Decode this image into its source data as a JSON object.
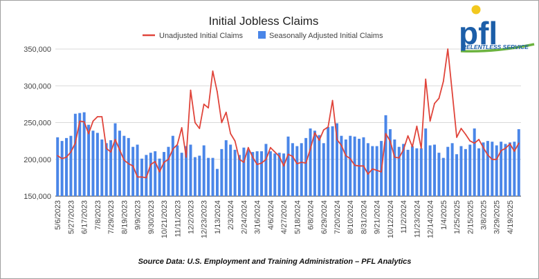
{
  "logo": {
    "letters": "pfl",
    "tagline": "RELENTLESS SERVICE",
    "colors": {
      "primary": "#1c5ea8",
      "sun": "#f2c81e",
      "swoosh": "#6cb33f"
    }
  },
  "source": "Source Data: U.S. Employment and Training Administration – PFL Analytics",
  "chart_data": {
    "type": "bar",
    "title": "Initial Jobless Claims",
    "legend_position": "top-center",
    "grid": true,
    "ylim": [
      150000,
      350000
    ],
    "yticks": [
      {
        "value": 150000,
        "label": "150,000"
      },
      {
        "value": 200000,
        "label": "200,000"
      },
      {
        "value": 250000,
        "label": "250,000"
      },
      {
        "value": 300000,
        "label": "300,000"
      },
      {
        "value": 350000,
        "label": "350,000"
      }
    ],
    "x_tick_labels": [
      {
        "index": 0,
        "label": "5/6/2023"
      },
      {
        "index": 3,
        "label": "5/27/2023"
      },
      {
        "index": 6,
        "label": "6/17/2023"
      },
      {
        "index": 9,
        "label": "7/8/2023"
      },
      {
        "index": 12,
        "label": "7/29/2023"
      },
      {
        "index": 15,
        "label": "8/19/2023"
      },
      {
        "index": 18,
        "label": "9/9/2023"
      },
      {
        "index": 21,
        "label": "9/30/2023"
      },
      {
        "index": 24,
        "label": "10/21/2023"
      },
      {
        "index": 27,
        "label": "11/11/2023"
      },
      {
        "index": 30,
        "label": "12/2/2023"
      },
      {
        "index": 33,
        "label": "12/23/2023"
      },
      {
        "index": 36,
        "label": "1/13/2024"
      },
      {
        "index": 39,
        "label": "2/3/2024"
      },
      {
        "index": 42,
        "label": "2/24/2024"
      },
      {
        "index": 45,
        "label": "3/16/2024"
      },
      {
        "index": 48,
        "label": "4/6/2024"
      },
      {
        "index": 51,
        "label": "4/27/2024"
      },
      {
        "index": 54,
        "label": "5/18/2024"
      },
      {
        "index": 57,
        "label": "6/8/2024"
      },
      {
        "index": 60,
        "label": "6/29/2024"
      },
      {
        "index": 63,
        "label": "7/20/2024"
      },
      {
        "index": 66,
        "label": "8/10/2024"
      },
      {
        "index": 69,
        "label": "8/31/2024"
      },
      {
        "index": 72,
        "label": "9/21/2024"
      },
      {
        "index": 75,
        "label": "10/12/2024"
      },
      {
        "index": 78,
        "label": "11/2/2024"
      },
      {
        "index": 81,
        "label": "11/23/2024"
      },
      {
        "index": 84,
        "label": "12/14/2024"
      },
      {
        "index": 87,
        "label": "1/4/2025"
      },
      {
        "index": 90,
        "label": "1/25/2025"
      },
      {
        "index": 93,
        "label": "2/15/2025"
      },
      {
        "index": 96,
        "label": "3/8/2025"
      },
      {
        "index": 99,
        "label": "3/29/2025"
      },
      {
        "index": 102,
        "label": "4/19/2025"
      }
    ],
    "series": [
      {
        "name": "Unadjusted Initial Claims",
        "type": "line",
        "color": "#e0443a",
        "values": [
          205000,
          201000,
          203000,
          210000,
          222000,
          252000,
          251000,
          235000,
          252000,
          258000,
          258000,
          215000,
          210000,
          227000,
          213000,
          199000,
          194000,
          191000,
          176000,
          176000,
          175000,
          193000,
          197000,
          183000,
          196000,
          200000,
          214000,
          220000,
          243000,
          203000,
          294000,
          250000,
          242000,
          275000,
          270000,
          320000,
          292000,
          250000,
          264000,
          235000,
          225000,
          200000,
          196000,
          216000,
          203000,
          193000,
          195000,
          200000,
          216000,
          210000,
          204000,
          191000,
          207000,
          204000,
          194000,
          196000,
          195000,
          214000,
          236000,
          226000,
          240000,
          244000,
          280000,
          227000,
          219000,
          205000,
          201000,
          192000,
          191000,
          191000,
          180000,
          187000,
          185000,
          183000,
          235000,
          225000,
          203000,
          202000,
          213000,
          232000,
          217000,
          245000,
          215000,
          309000,
          252000,
          276000,
          283000,
          306000,
          350000,
          290000,
          230000,
          242000,
          234000,
          225000,
          222000,
          227000,
          216000,
          206000,
          200000,
          200000,
          212000,
          215000,
          221000,
          211000,
          222000
        ]
      },
      {
        "name": "Seasonally Adjusted Initial Claims",
        "type": "bar",
        "color": "#4a86e8",
        "values": [
          230000,
          225000,
          229000,
          232000,
          262000,
          263000,
          264000,
          247000,
          239000,
          236000,
          227000,
          222000,
          226000,
          249000,
          239000,
          232000,
          229000,
          217000,
          220000,
          201000,
          206000,
          209000,
          211000,
          201000,
          210000,
          217000,
          232000,
          219000,
          209000,
          218000,
          220000,
          203000,
          205000,
          219000,
          202000,
          202000,
          187000,
          214000,
          226000,
          220000,
          213000,
          206000,
          216000,
          213000,
          210000,
          211000,
          211000,
          221000,
          211000,
          208000,
          209000,
          208000,
          231000,
          222000,
          218000,
          222000,
          229000,
          242000,
          239000,
          233000,
          222000,
          244000,
          245000,
          249000,
          232000,
          227000,
          232000,
          231000,
          228000,
          230000,
          222000,
          218000,
          218000,
          225000,
          260000,
          241000,
          227000,
          217000,
          221000,
          213000,
          218000,
          215000,
          215000,
          242000,
          219000,
          220000,
          209000,
          202000,
          217000,
          222000,
          207000,
          218000,
          214000,
          220000,
          242000,
          215000,
          223000,
          225000,
          224000,
          219000,
          224000,
          221000,
          223000,
          224000,
          241000
        ]
      }
    ]
  }
}
